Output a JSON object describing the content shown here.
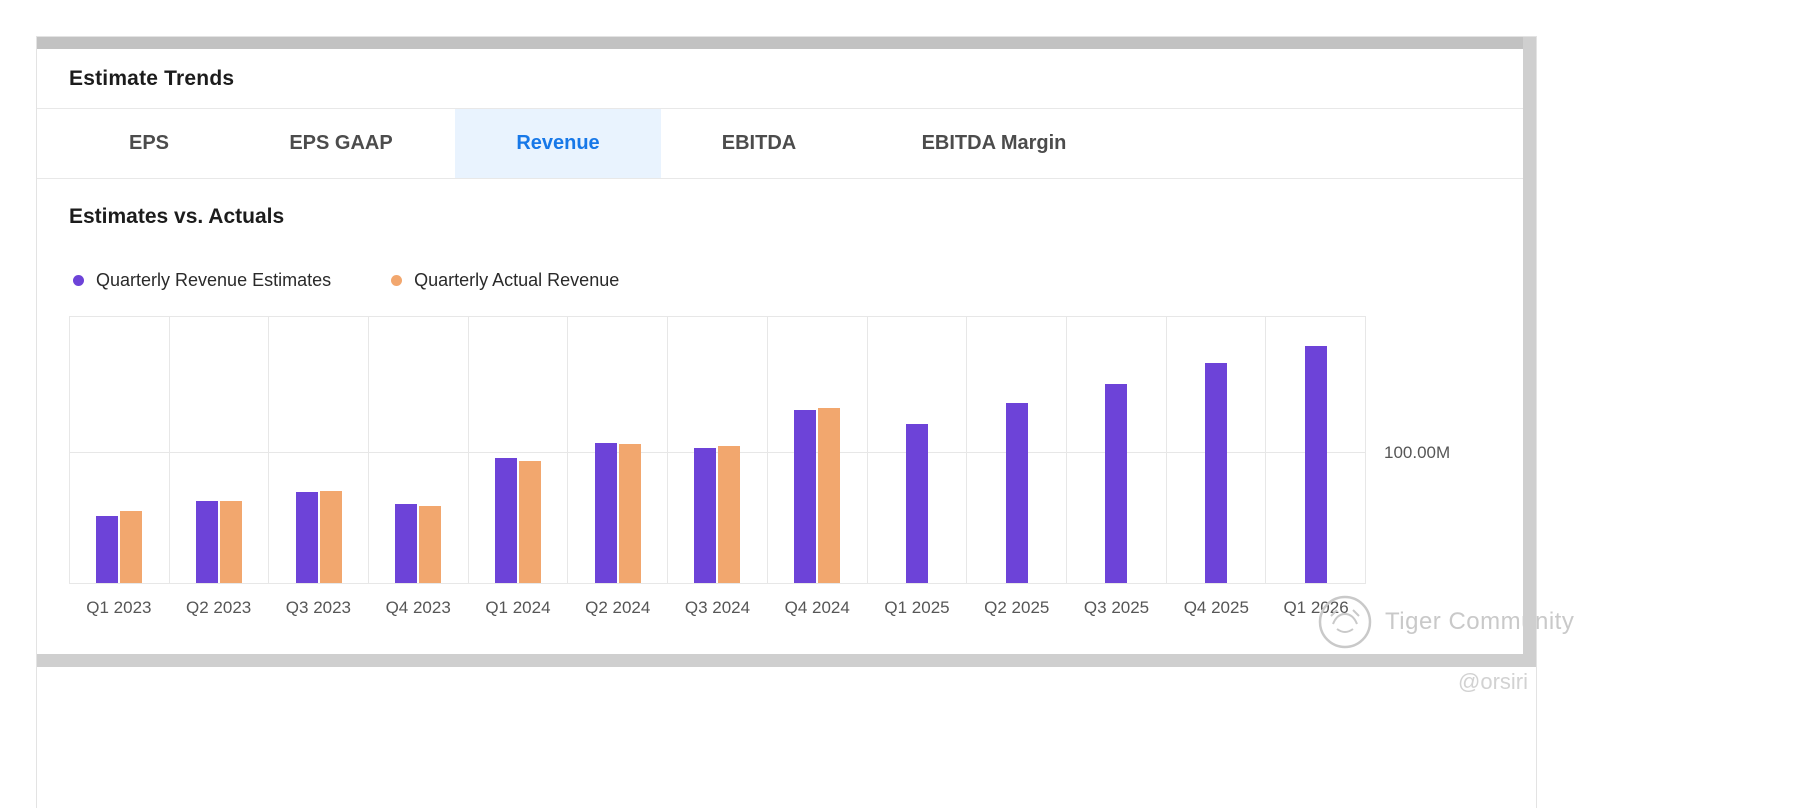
{
  "card": {
    "title": "Estimate Trends",
    "tabs": [
      {
        "label": "EPS",
        "active": false
      },
      {
        "label": "EPS GAAP",
        "active": false
      },
      {
        "label": "Revenue",
        "active": true
      },
      {
        "label": "EBITDA",
        "active": false
      },
      {
        "label": "EBITDA Margin",
        "active": false
      }
    ]
  },
  "chart_data": {
    "type": "bar",
    "title": "Estimates vs. Actuals",
    "categories": [
      "Q1 2023",
      "Q2 2023",
      "Q3 2023",
      "Q4 2023",
      "Q1 2024",
      "Q2 2024",
      "Q3 2024",
      "Q4 2024",
      "Q1 2025",
      "Q2 2025",
      "Q3 2025",
      "Q4 2025",
      "Q1 2026"
    ],
    "series": [
      {
        "name": "Quarterly Revenue Estimates",
        "color": "#6d43d8",
        "unit": "M",
        "values": [
          51,
          62.5,
          69.5,
          60.5,
          95.5,
          107.5,
          103,
          132,
          121.5,
          138,
          152.5,
          168.5,
          181
        ]
      },
      {
        "name": "Quarterly Actual Revenue",
        "color": "#f2a76e",
        "unit": "M",
        "values": [
          55,
          63,
          70.5,
          59,
          93,
          106,
          104.5,
          134,
          null,
          null,
          null,
          null,
          null
        ]
      }
    ],
    "y_axis": {
      "side": "right",
      "ylim": [
        0,
        205
      ],
      "ticks": [
        {
          "value": 100,
          "label": "100.00M"
        }
      ]
    },
    "grid": true,
    "legend_position": "top-left"
  },
  "colors": {
    "accent_blue": "#1778e8",
    "active_tab_bg": "#e9f3fe",
    "estimate_purple": "#6d43d8",
    "actual_orange": "#f2a76e"
  },
  "watermark": {
    "brand": "Tiger Community",
    "handle": "@orsiri"
  }
}
